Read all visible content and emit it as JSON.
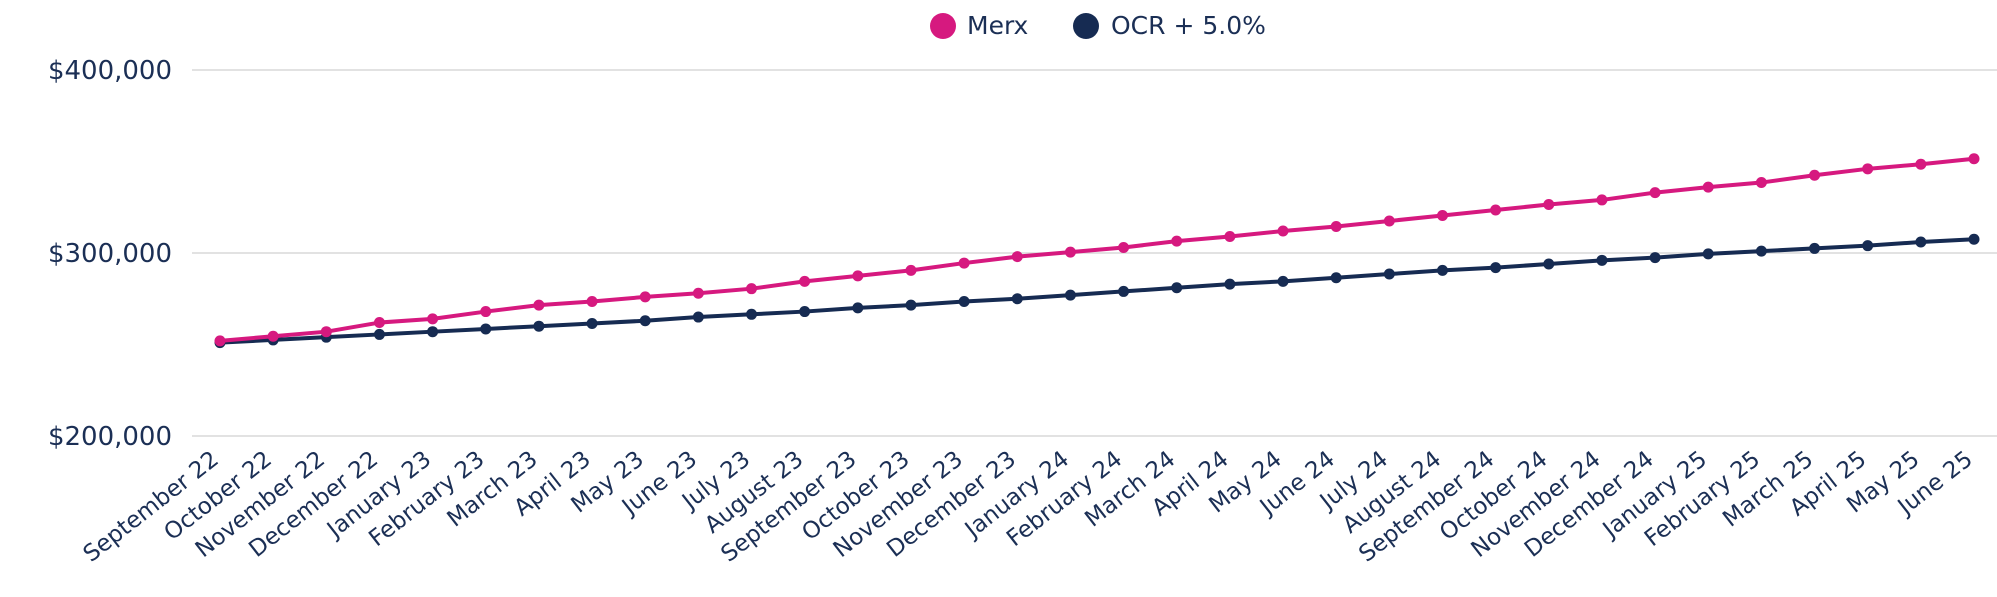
{
  "chart_data": {
    "type": "line",
    "title": "",
    "xlabel": "",
    "ylabel": "",
    "ylim": [
      200000,
      400000
    ],
    "yticks": [
      {
        "value": 200000,
        "label": "$200,000"
      },
      {
        "value": 300000,
        "label": "$300,000"
      },
      {
        "value": 400000,
        "label": "$400,000"
      }
    ],
    "grid": true,
    "legend_position": "top-center",
    "categories": [
      "September 22",
      "October 22",
      "November 22",
      "December 22",
      "January 23",
      "February 23",
      "March 23",
      "April 23",
      "May 23",
      "June 23",
      "July 23",
      "August 23",
      "September 23",
      "October 23",
      "November 23",
      "December 23",
      "January 24",
      "February 24",
      "March 24",
      "April 24",
      "May 24",
      "June 24",
      "July 24",
      "August 24",
      "September 24",
      "October 24",
      "November 24",
      "December 24",
      "January 25",
      "February 25",
      "March 25",
      "April 25",
      "May 25",
      "June 25"
    ],
    "series": [
      {
        "name": "Merx",
        "color": "#d6197f",
        "values": [
          252000,
          254500,
          257000,
          262000,
          264000,
          268000,
          271500,
          273500,
          276000,
          278000,
          280500,
          284500,
          287500,
          290500,
          294500,
          298000,
          300500,
          303000,
          306500,
          309000,
          312000,
          314500,
          317500,
          320500,
          323500,
          326500,
          329000,
          333000,
          336000,
          338500,
          342500,
          346000,
          348500,
          351500
        ]
      },
      {
        "name": "OCR + 5.0%",
        "color": "#162b52",
        "values": [
          251000,
          252500,
          254000,
          255500,
          257000,
          258500,
          260000,
          261500,
          263000,
          265000,
          266500,
          268000,
          270000,
          271500,
          273500,
          275000,
          277000,
          279000,
          281000,
          283000,
          284500,
          286500,
          288500,
          290500,
          292000,
          294000,
          296000,
          297500,
          299500,
          301000,
          302500,
          304000,
          306000,
          307500
        ]
      }
    ]
  }
}
